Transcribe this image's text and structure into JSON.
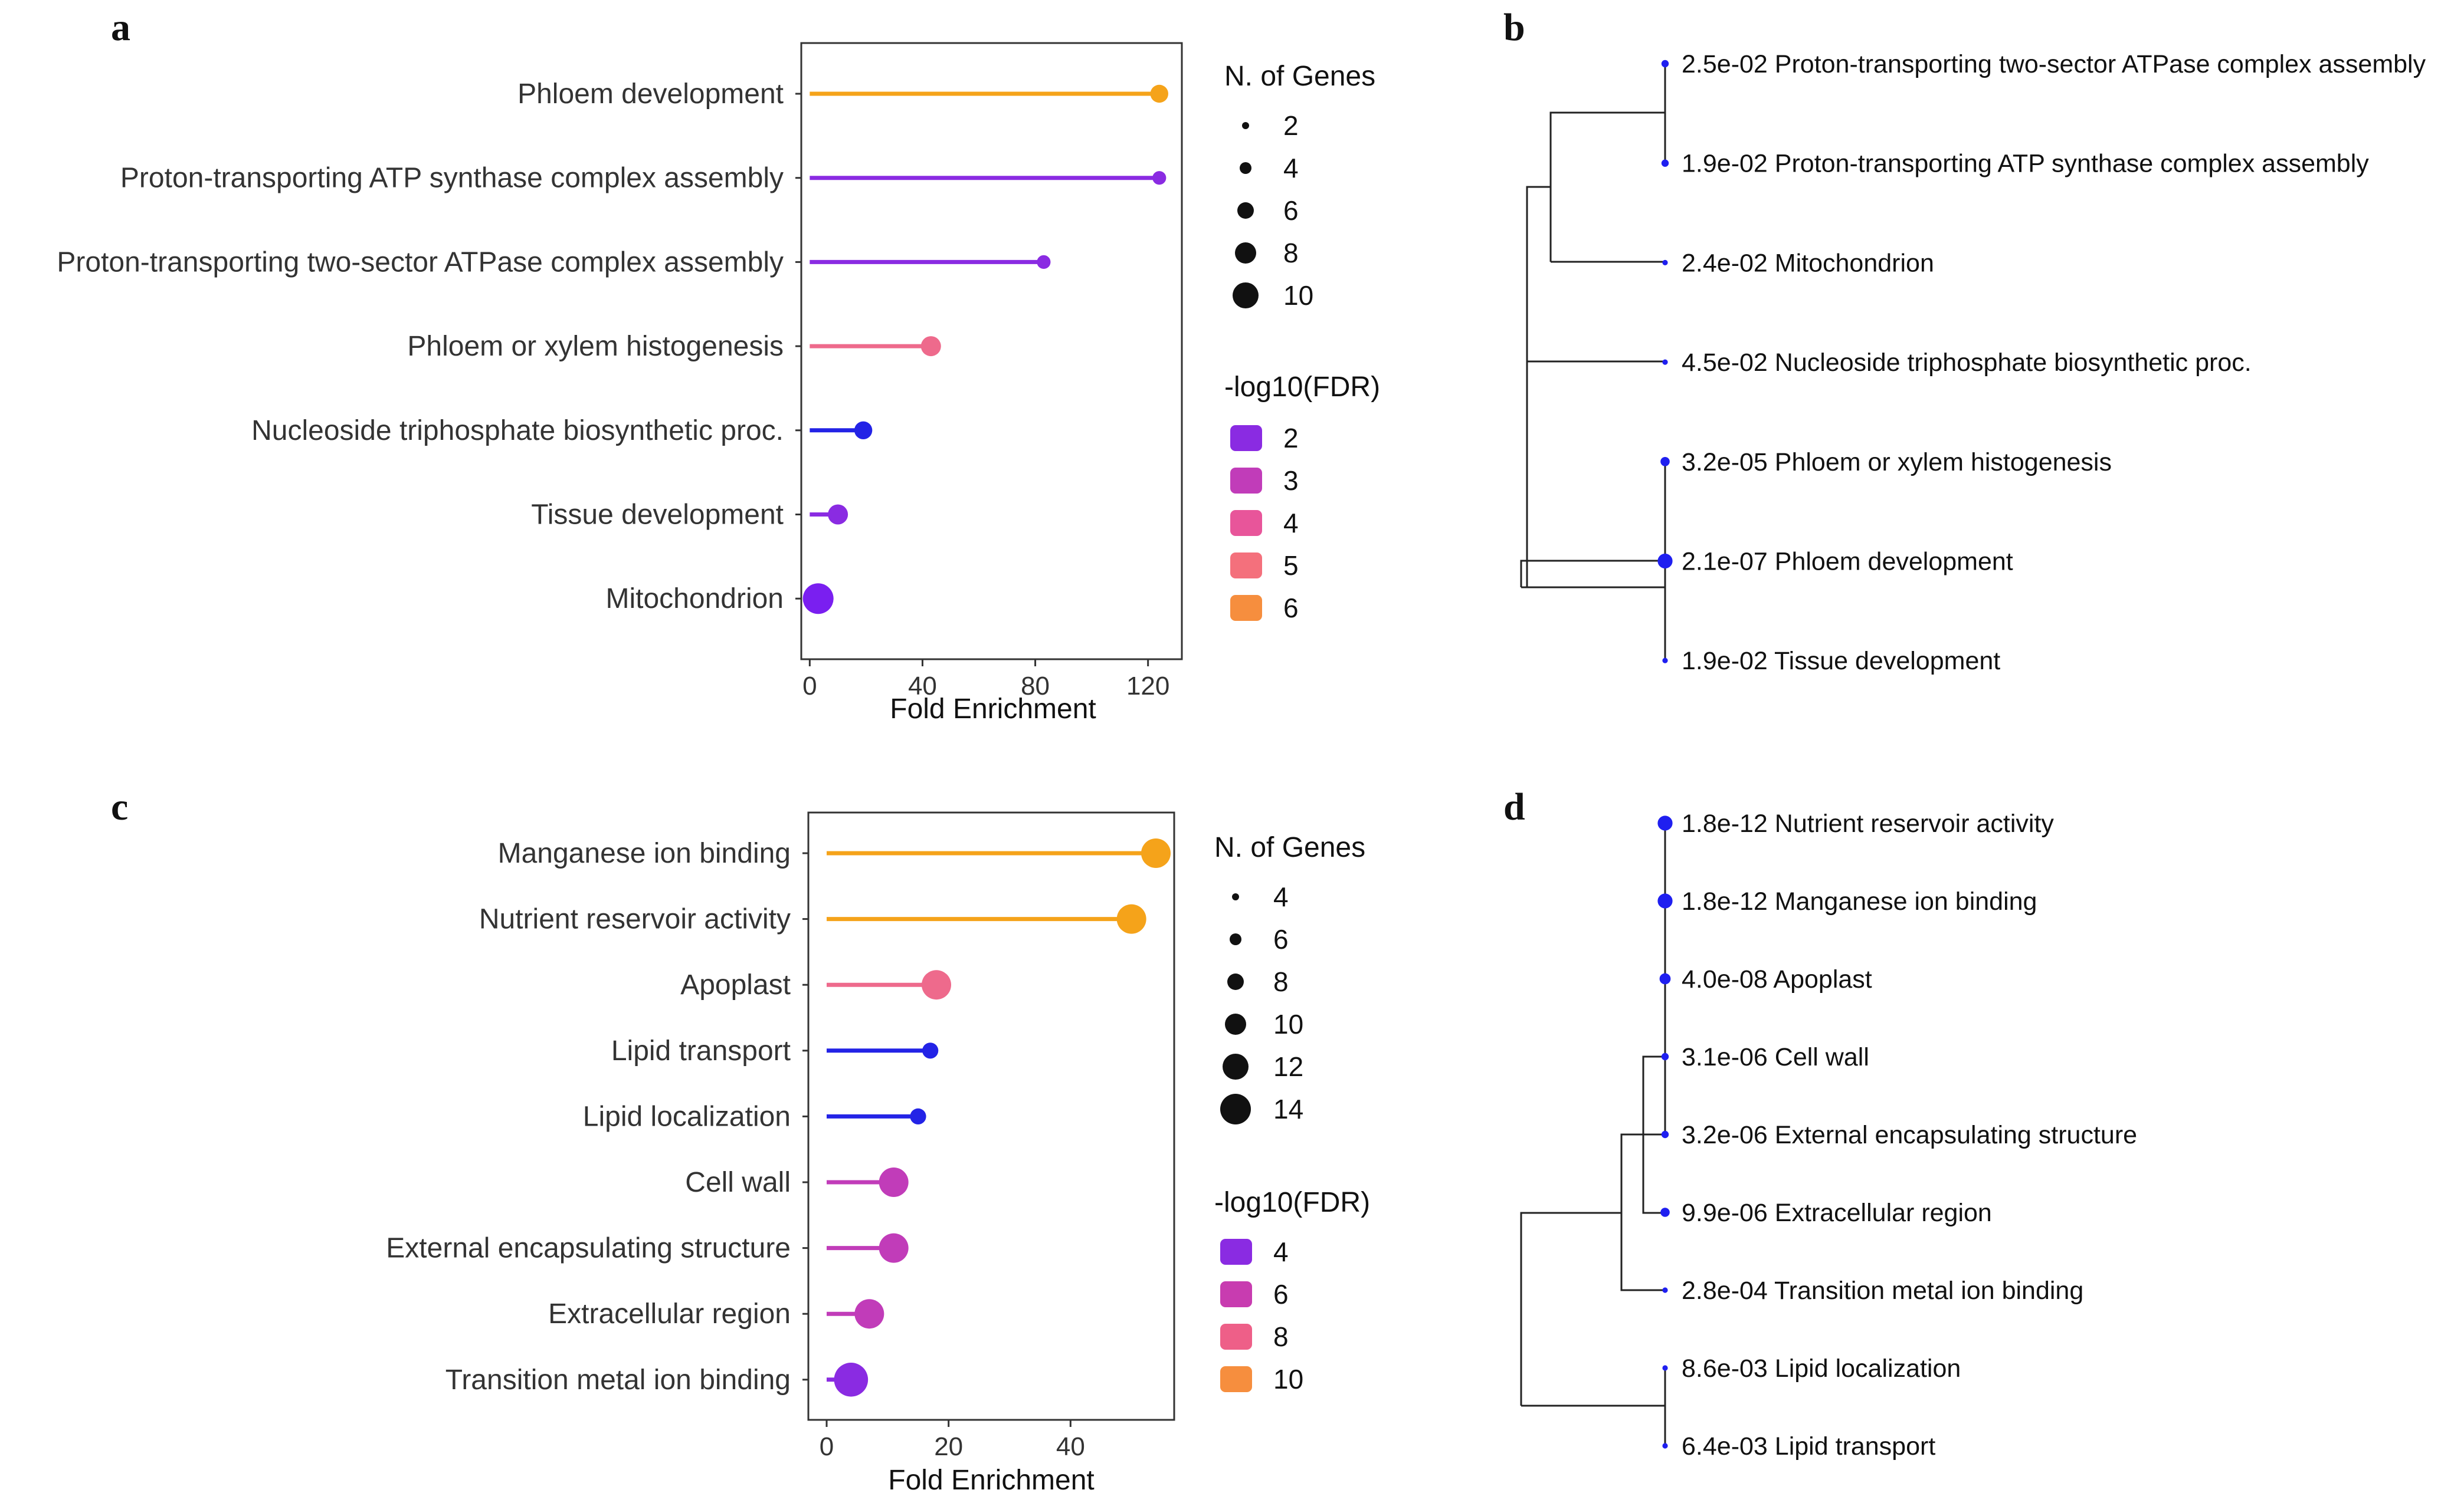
{
  "panel_labels": [
    "a",
    "b",
    "c",
    "d"
  ],
  "chart_data": [
    {
      "panel": "a",
      "type": "lollipop",
      "categories": [
        "Phloem development",
        "Proton-transporting ATP synthase complex assembly",
        "Proton-transporting two-sector ATPase complex assembly",
        "Phloem or xylem histogenesis",
        "Nucleoside triphosphate biosynthetic proc.",
        "Tissue development",
        "Mitochondrion"
      ],
      "values": [
        124,
        124,
        83,
        43,
        19,
        10,
        3
      ],
      "n_genes": [
        4,
        2,
        2,
        5,
        4,
        5,
        10
      ],
      "neg_log10_fdr": [
        6.7,
        1.7,
        1.6,
        4.5,
        1.3,
        1.7,
        1.6
      ],
      "colors": [
        "#f5a31a",
        "#8a2be2",
        "#8a2be2",
        "#ee6a8c",
        "#2323e6",
        "#8a2be2",
        "#7a1ff0"
      ],
      "xlabel": "Fold Enrichment",
      "xlim": [
        -3,
        132
      ],
      "xticks": [
        0,
        40,
        80,
        120
      ],
      "size_legend": {
        "title": "N. of Genes",
        "entries": [
          "2",
          "4",
          "6",
          "8",
          "10"
        ]
      },
      "color_legend": {
        "title": "-log10(FDR)",
        "entries": [
          "2",
          "3",
          "4",
          "5",
          "6"
        ],
        "colors": [
          "#8a2be2",
          "#c13cb9",
          "#e8559a",
          "#f4707c",
          "#f68e3e"
        ]
      }
    },
    {
      "panel": "c",
      "type": "lollipop",
      "categories": [
        "Manganese ion binding",
        "Nutrient reservoir activity",
        "Apoplast",
        "Lipid transport",
        "Lipid localization",
        "Cell wall",
        "External encapsulating structure",
        "Extracellular region",
        "Transition metal ion binding"
      ],
      "values": [
        54,
        50,
        18,
        17,
        15,
        11,
        11,
        7,
        4
      ],
      "n_genes": [
        10,
        10,
        10,
        4,
        4,
        10,
        10,
        10,
        12
      ],
      "neg_log10_fdr": [
        11.7,
        11.7,
        7.4,
        2.2,
        2.1,
        5.5,
        5.5,
        5.0,
        3.6
      ],
      "colors": [
        "#f5a31a",
        "#f5a31a",
        "#ee6a8c",
        "#2323e6",
        "#2323e6",
        "#c13cb9",
        "#c13cb9",
        "#c13cb9",
        "#8a2be2"
      ],
      "xlabel": "Fold Enrichment",
      "xlim": [
        -3,
        57
      ],
      "xticks": [
        0,
        20,
        40
      ],
      "size_legend": {
        "title": "N. of Genes",
        "entries": [
          "4",
          "6",
          "8",
          "10",
          "12",
          "14"
        ]
      },
      "color_legend": {
        "title": "-log10(FDR)",
        "entries": [
          "4",
          "6",
          "8",
          "10"
        ],
        "colors": [
          "#8a2be2",
          "#c83cb0",
          "#ee5f88",
          "#f68e3e"
        ]
      }
    },
    {
      "panel": "b",
      "type": "dendrogram",
      "leaves": [
        {
          "label": "2.5e-02 Proton-transporting two-sector ATPase complex assembly",
          "genes": 2
        },
        {
          "label": "1.9e-02 Proton-transporting ATP synthase complex assembly",
          "genes": 2
        },
        {
          "label": "2.4e-02 Mitochondrion",
          "genes": 1
        },
        {
          "label": "4.5e-02 Nucleoside triphosphate biosynthetic proc.",
          "genes": 1
        },
        {
          "label": "3.2e-05 Phloem or xylem histogenesis",
          "genes": 3
        },
        {
          "label": "2.1e-07 Phloem development",
          "genes": 6
        },
        {
          "label": "1.9e-02 Tissue development",
          "genes": 1
        }
      ]
    },
    {
      "panel": "d",
      "type": "dendrogram",
      "leaves": [
        {
          "label": "1.8e-12 Nutrient reservoir activity",
          "genes": 6
        },
        {
          "label": "1.8e-12 Manganese ion binding",
          "genes": 6
        },
        {
          "label": "4.0e-08 Apoplast",
          "genes": 4
        },
        {
          "label": "3.1e-06 Cell wall",
          "genes": 2
        },
        {
          "label": "3.2e-06 External encapsulating structure",
          "genes": 2
        },
        {
          "label": "9.9e-06 Extracellular region",
          "genes": 3
        },
        {
          "label": "2.8e-04 Transition metal ion binding",
          "genes": 1
        },
        {
          "label": "8.6e-03 Lipid localization",
          "genes": 1
        },
        {
          "label": "6.4e-03 Lipid transport",
          "genes": 1
        }
      ]
    }
  ]
}
